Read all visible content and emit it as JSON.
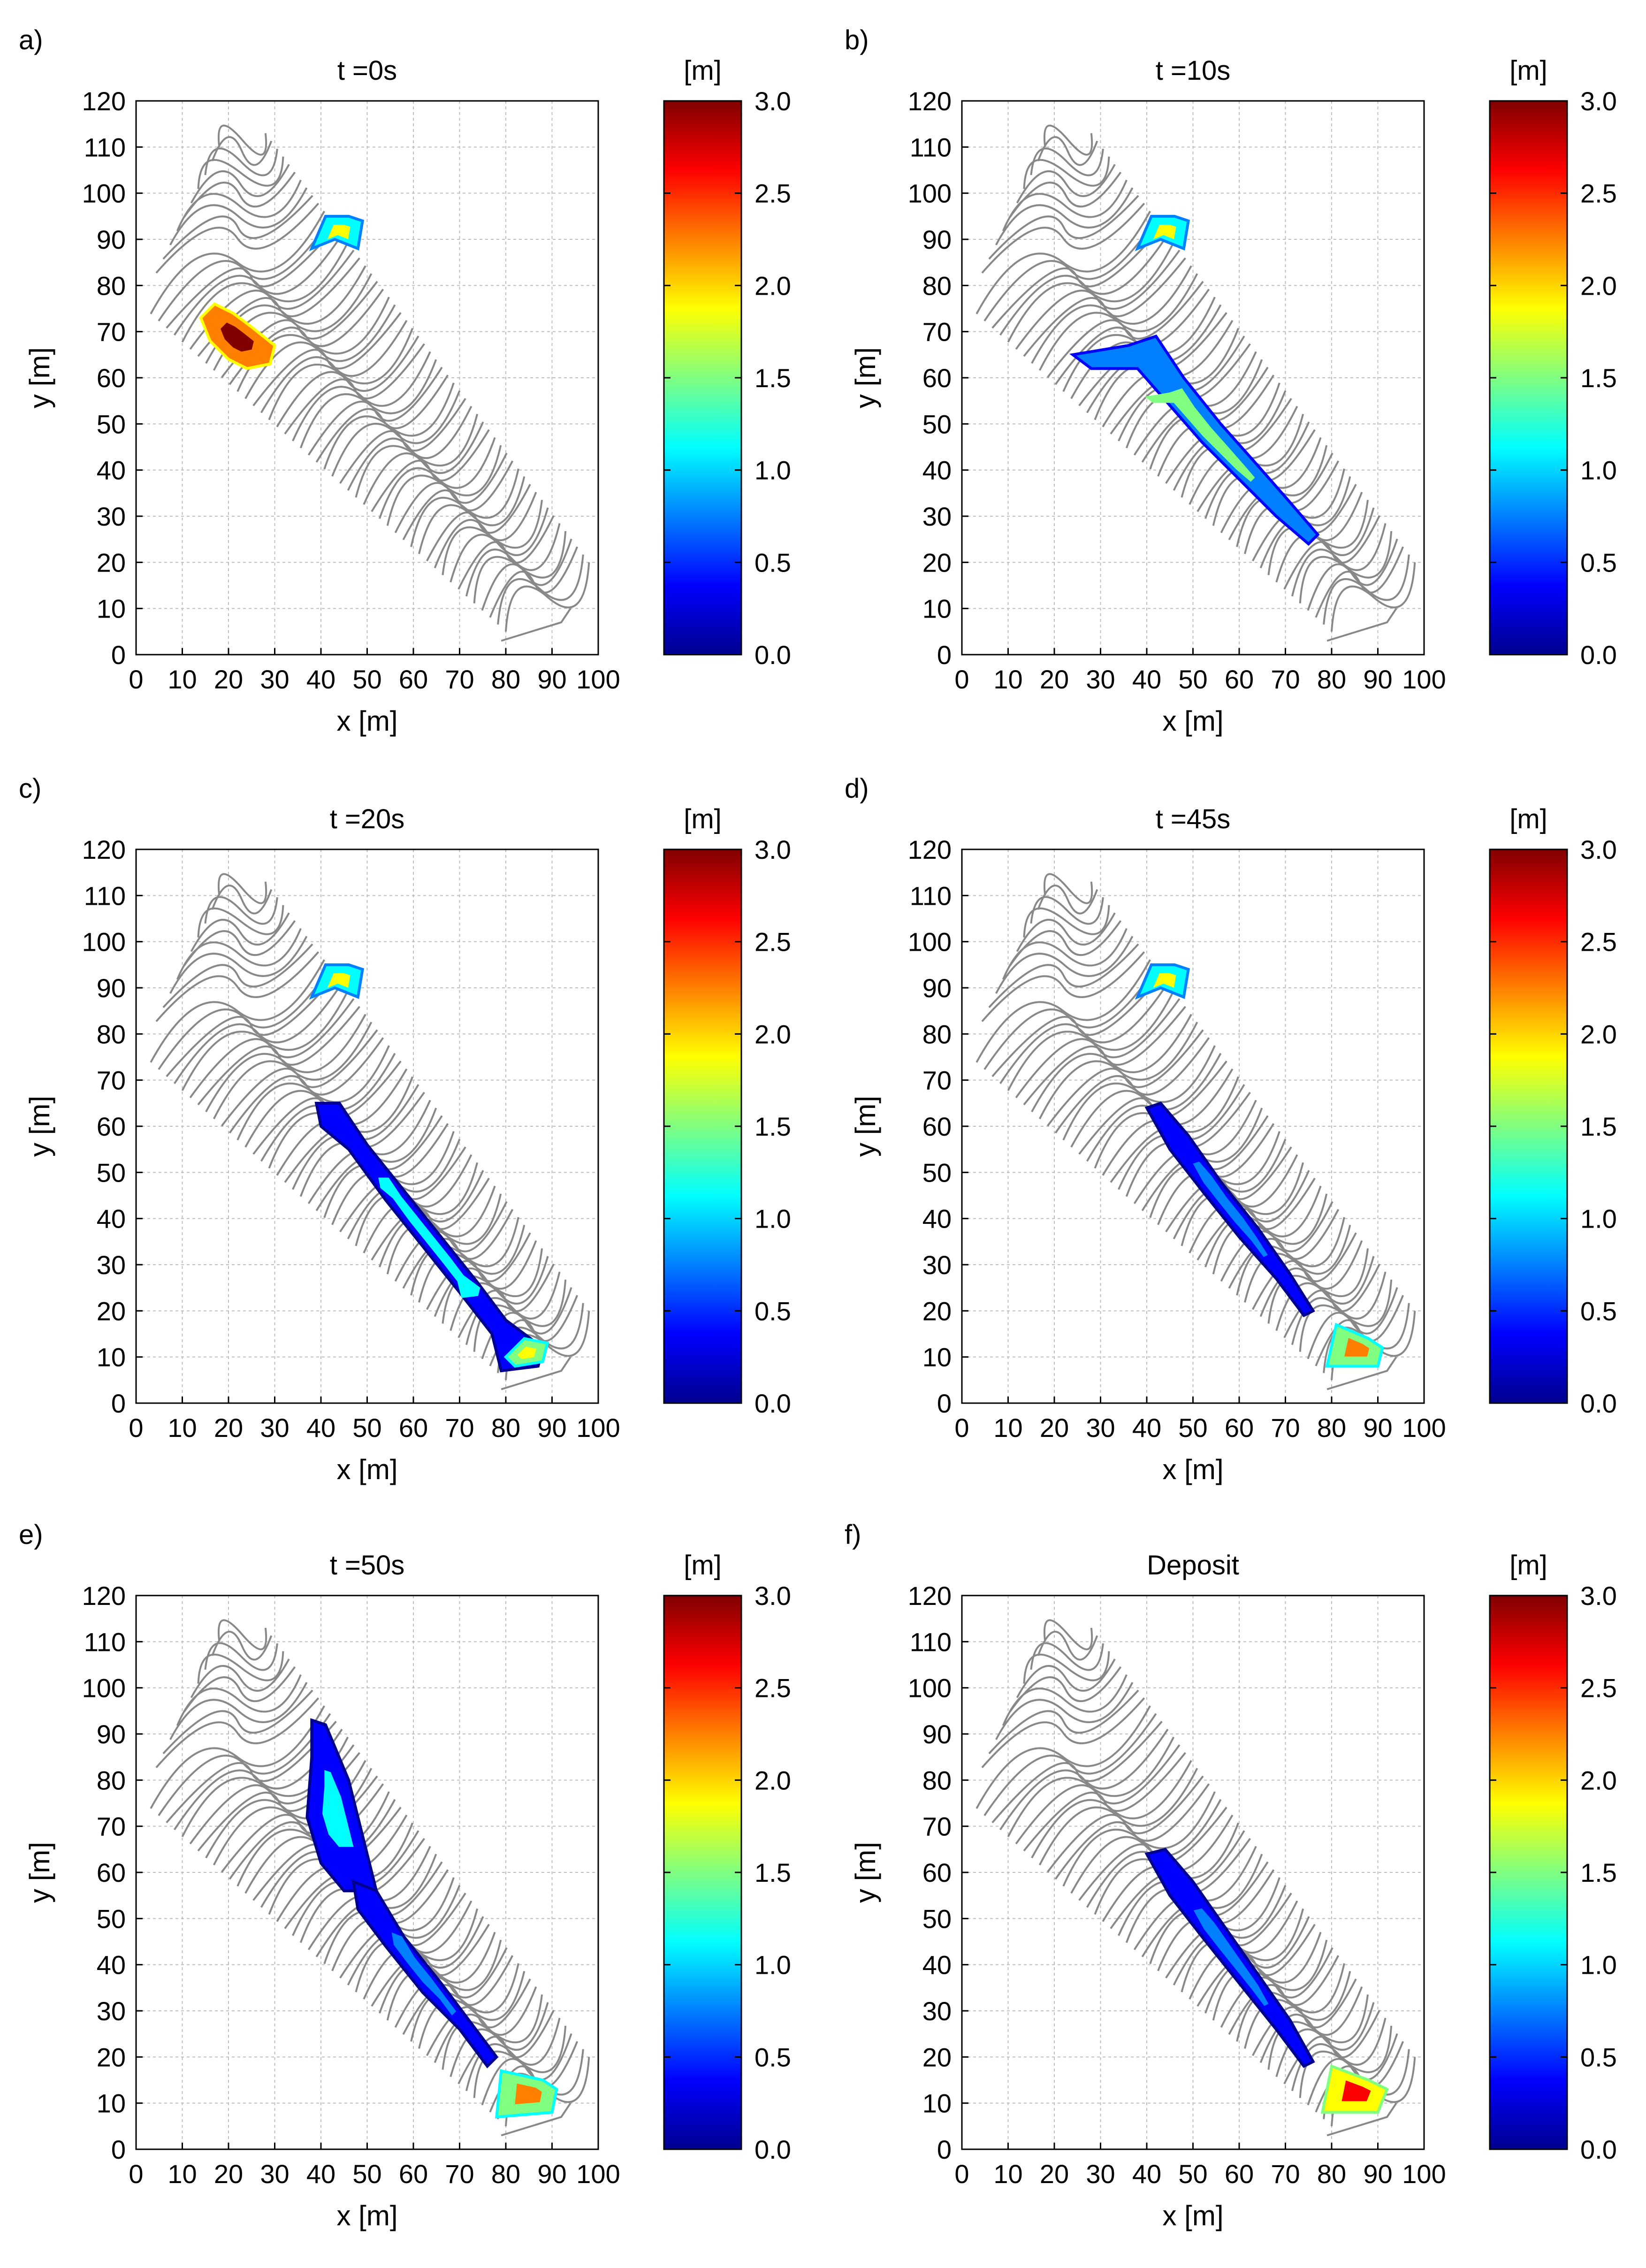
{
  "figure": {
    "colorbar_unit": "[m]",
    "colorbar_ticks": [
      "0.0",
      "0.5",
      "1.0",
      "1.5",
      "2.0",
      "2.5",
      "3.0"
    ],
    "colorbar_range": [
      0,
      3
    ],
    "colorbar_colors": [
      "#00008f",
      "#0000ff",
      "#0080ff",
      "#00ffff",
      "#80ff80",
      "#ffff00",
      "#ff8000",
      "#ff0000",
      "#800000"
    ],
    "contour_color": "#888888",
    "grid_color": "#bdbdbd"
  },
  "chart_data": [
    {
      "type": "heatmap",
      "panel_label": "a)",
      "title": "t =0s",
      "xlabel": "x [m]",
      "ylabel": "y [m]",
      "xlim": [
        0,
        100
      ],
      "ylim": [
        0,
        120
      ],
      "xticks": [
        "0",
        "10",
        "20",
        "30",
        "40",
        "50",
        "60",
        "70",
        "80",
        "90",
        "100"
      ],
      "yticks": [
        "0",
        "10",
        "20",
        "30",
        "40",
        "50",
        "60",
        "70",
        "80",
        "90",
        "100",
        "110",
        "120"
      ],
      "flow_regions": [
        {
          "name": "upper-pond",
          "path": [
            [
              38,
              88
            ],
            [
              41,
              95
            ],
            [
              46,
              95
            ],
            [
              49,
              94
            ],
            [
              48,
              88
            ],
            [
              43,
              90
            ]
          ],
          "value": 1.1
        },
        {
          "name": "release-mass",
          "path": [
            [
              14,
              73
            ],
            [
              17,
              76
            ],
            [
              21,
              74
            ],
            [
              25,
              71
            ],
            [
              30,
              67
            ],
            [
              29,
              63
            ],
            [
              24,
              62
            ],
            [
              20,
              64
            ],
            [
              16,
              68
            ]
          ],
          "value": 2.3
        }
      ]
    },
    {
      "type": "heatmap",
      "panel_label": "b)",
      "title": "t =10s",
      "xlabel": "x [m]",
      "ylabel": "y [m]",
      "xlim": [
        0,
        100
      ],
      "ylim": [
        0,
        120
      ],
      "xticks": [
        "0",
        "10",
        "20",
        "30",
        "40",
        "50",
        "60",
        "70",
        "80",
        "90",
        "100"
      ],
      "yticks": [
        "0",
        "10",
        "20",
        "30",
        "40",
        "50",
        "60",
        "70",
        "80",
        "90",
        "100",
        "110",
        "120"
      ],
      "flow_regions": [
        {
          "name": "upper-pond",
          "path": [
            [
              38,
              88
            ],
            [
              41,
              95
            ],
            [
              46,
              95
            ],
            [
              49,
              94
            ],
            [
              48,
              88
            ],
            [
              43,
              90
            ]
          ],
          "value": 1.1
        },
        {
          "name": "flow-stream",
          "path": [
            [
              24,
              65
            ],
            [
              36,
              67
            ],
            [
              42,
              69
            ],
            [
              48,
              60
            ],
            [
              56,
              50
            ],
            [
              64,
              41
            ],
            [
              71,
              33
            ],
            [
              77,
              26
            ],
            [
              75,
              24
            ],
            [
              68,
              30
            ],
            [
              60,
              38
            ],
            [
              52,
              46
            ],
            [
              45,
              54
            ],
            [
              38,
              62
            ],
            [
              28,
              62
            ]
          ],
          "value": 0.8
        }
      ]
    },
    {
      "type": "heatmap",
      "panel_label": "c)",
      "title": "t =20s",
      "xlabel": "x [m]",
      "ylabel": "y [m]",
      "xlim": [
        0,
        100
      ],
      "ylim": [
        0,
        120
      ],
      "xticks": [
        "0",
        "10",
        "20",
        "30",
        "40",
        "50",
        "60",
        "70",
        "80",
        "90",
        "100"
      ],
      "yticks": [
        "0",
        "10",
        "20",
        "30",
        "40",
        "50",
        "60",
        "70",
        "80",
        "90",
        "100",
        "110",
        "120"
      ],
      "flow_regions": [
        {
          "name": "upper-pond",
          "path": [
            [
              38,
              88
            ],
            [
              41,
              95
            ],
            [
              46,
              95
            ],
            [
              49,
              94
            ],
            [
              48,
              88
            ],
            [
              43,
              90
            ]
          ],
          "value": 1.1
        },
        {
          "name": "flow-stream",
          "path": [
            [
              39,
              65
            ],
            [
              44,
              65
            ],
            [
              50,
              56
            ],
            [
              58,
              46
            ],
            [
              66,
              36
            ],
            [
              74,
              26
            ],
            [
              80,
              18
            ],
            [
              88,
              12
            ],
            [
              87,
              8
            ],
            [
              79,
              7
            ],
            [
              77,
              15
            ],
            [
              70,
              24
            ],
            [
              62,
              34
            ],
            [
              54,
              44
            ],
            [
              46,
              55
            ],
            [
              40,
              60
            ]
          ],
          "value": 0.4
        },
        {
          "name": "toe-deposit",
          "path": [
            [
              80,
              10
            ],
            [
              84,
              14
            ],
            [
              89,
              13
            ],
            [
              88,
              9
            ],
            [
              82,
              8
            ]
          ],
          "value": 1.4
        }
      ]
    },
    {
      "type": "heatmap",
      "panel_label": "d)",
      "title": "t =45s",
      "xlabel": "x [m]",
      "ylabel": "y [m]",
      "xlim": [
        0,
        100
      ],
      "ylim": [
        0,
        120
      ],
      "xticks": [
        "0",
        "10",
        "20",
        "30",
        "40",
        "50",
        "60",
        "70",
        "80",
        "90",
        "100"
      ],
      "yticks": [
        "0",
        "10",
        "20",
        "30",
        "40",
        "50",
        "60",
        "70",
        "80",
        "90",
        "100",
        "110",
        "120"
      ],
      "flow_regions": [
        {
          "name": "upper-pond",
          "path": [
            [
              38,
              88
            ],
            [
              41,
              95
            ],
            [
              46,
              95
            ],
            [
              49,
              94
            ],
            [
              48,
              88
            ],
            [
              43,
              90
            ]
          ],
          "value": 1.1
        },
        {
          "name": "flow-stream",
          "path": [
            [
              40,
              64
            ],
            [
              43,
              65
            ],
            [
              49,
              58
            ],
            [
              56,
              48
            ],
            [
              64,
              38
            ],
            [
              71,
              28
            ],
            [
              76,
              20
            ],
            [
              74,
              19
            ],
            [
              68,
              27
            ],
            [
              60,
              36
            ],
            [
              52,
              46
            ],
            [
              45,
              55
            ]
          ],
          "value": 0.3
        },
        {
          "name": "toe-deposit",
          "path": [
            [
              79,
              8
            ],
            [
              81,
              17
            ],
            [
              88,
              14
            ],
            [
              91,
              12
            ],
            [
              90,
              8
            ]
          ],
          "value": 1.6
        }
      ]
    },
    {
      "type": "heatmap",
      "panel_label": "e)",
      "title": "t =50s",
      "xlabel": "x [m]",
      "ylabel": "y [m]",
      "xlim": [
        0,
        100
      ],
      "ylim": [
        0,
        120
      ],
      "xticks": [
        "0",
        "10",
        "20",
        "30",
        "40",
        "50",
        "60",
        "70",
        "80",
        "90",
        "100"
      ],
      "yticks": [
        "0",
        "10",
        "20",
        "30",
        "40",
        "50",
        "60",
        "70",
        "80",
        "90",
        "100",
        "110",
        "120"
      ],
      "flow_regions": [
        {
          "name": "upper-flow",
          "path": [
            [
              38,
              93
            ],
            [
              41,
              92
            ],
            [
              46,
              80
            ],
            [
              50,
              64
            ],
            [
              52,
              56
            ],
            [
              45,
              56
            ],
            [
              40,
              62
            ],
            [
              37,
              72
            ],
            [
              38,
              85
            ]
          ],
          "value": 0.5
        },
        {
          "name": "flow-stream",
          "path": [
            [
              47,
              58
            ],
            [
              52,
              56
            ],
            [
              58,
              46
            ],
            [
              66,
              36
            ],
            [
              72,
              28
            ],
            [
              78,
              20
            ],
            [
              76,
              18
            ],
            [
              70,
              26
            ],
            [
              62,
              34
            ],
            [
              54,
              44
            ],
            [
              48,
              52
            ]
          ],
          "value": 0.3
        },
        {
          "name": "toe-deposit",
          "path": [
            [
              78,
              7
            ],
            [
              79,
              17
            ],
            [
              88,
              15
            ],
            [
              91,
              13
            ],
            [
              90,
              8
            ]
          ],
          "value": 1.6
        }
      ]
    },
    {
      "type": "heatmap",
      "panel_label": "f)",
      "title": "Deposit",
      "xlabel": "x [m]",
      "ylabel": "y [m]",
      "xlim": [
        0,
        100
      ],
      "ylim": [
        0,
        120
      ],
      "xticks": [
        "0",
        "10",
        "20",
        "30",
        "40",
        "50",
        "60",
        "70",
        "80",
        "90",
        "100"
      ],
      "yticks": [
        "0",
        "10",
        "20",
        "30",
        "40",
        "50",
        "60",
        "70",
        "80",
        "90",
        "100",
        "110",
        "120"
      ],
      "flow_regions": [
        {
          "name": "flow-stream",
          "path": [
            [
              40,
              64
            ],
            [
              44,
              65
            ],
            [
              50,
              58
            ],
            [
              57,
              48
            ],
            [
              64,
              38
            ],
            [
              71,
              28
            ],
            [
              76,
              19
            ],
            [
              74,
              18
            ],
            [
              68,
              26
            ],
            [
              60,
              36
            ],
            [
              52,
              46
            ],
            [
              45,
              55
            ]
          ],
          "value": 0.3
        },
        {
          "name": "toe-deposit",
          "path": [
            [
              78,
              8
            ],
            [
              80,
              18
            ],
            [
              88,
              15
            ],
            [
              92,
              13
            ],
            [
              90,
              8
            ]
          ],
          "value": 2.0
        }
      ]
    }
  ]
}
